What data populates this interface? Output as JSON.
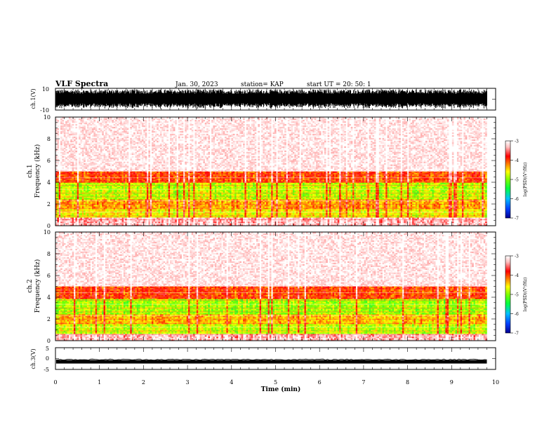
{
  "header": {
    "title": "VLF Spectra",
    "date": "Jan. 30, 2023",
    "station": "station= KAP",
    "start_ut": "start  UT  =   20: 50: 1"
  },
  "colors": {
    "axes": "#000000",
    "background": "#ffffff",
    "colorbar_stops": [
      "#000090",
      "#0040ff",
      "#00c0ff",
      "#00ff40",
      "#80ff00",
      "#ffff00",
      "#ff8000",
      "#ff0000",
      "#ffc0c0",
      "#ffffff"
    ]
  },
  "chart_data": [
    {
      "type": "line",
      "panel": "ch.1 waveform",
      "ylabel": "ch.1(V)",
      "ylim": [
        -10,
        10
      ],
      "yticks": [
        10,
        -10
      ],
      "xlim": [
        0,
        10
      ],
      "note_amplitude_fraction": 0.9
    },
    {
      "type": "heatmap",
      "panel": "ch.1 spectrogram",
      "ylabel": "ch.1\nFrequency (kHz)",
      "ylim": [
        0,
        10
      ],
      "yticks": [
        0,
        2,
        4,
        6,
        8,
        10
      ],
      "xlim": [
        0,
        9.8
      ],
      "colorbar": {
        "label": "log(PSD)(V²/Hz)",
        "range": [
          -7,
          -3
        ],
        "ticks": [
          -3,
          -4,
          -5,
          -6,
          -7
        ]
      },
      "band_levels": [
        {
          "fmin": 0,
          "fmax": 0.8,
          "level": -3.3
        },
        {
          "fmin": 0.8,
          "fmax": 1.5,
          "level": -4.6
        },
        {
          "fmin": 1.5,
          "fmax": 2.5,
          "level": -4.3
        },
        {
          "fmin": 2.5,
          "fmax": 4.0,
          "level": -4.8
        },
        {
          "fmin": 4.0,
          "fmax": 5.0,
          "level": -4.0
        },
        {
          "fmin": 5.0,
          "fmax": 10,
          "level": -3.2
        }
      ]
    },
    {
      "type": "heatmap",
      "panel": "ch.2 spectrogram",
      "ylabel": "ch.2\nFrequency (kHz)",
      "ylim": [
        0,
        10
      ],
      "yticks": [
        0,
        2,
        4,
        6,
        8,
        10
      ],
      "xlim": [
        0,
        9.8
      ],
      "colorbar": {
        "label": "log(PSD)(V²/Hz)",
        "range": [
          -7,
          -3
        ],
        "ticks": [
          -3,
          -4,
          -5,
          -6,
          -7
        ]
      },
      "band_levels": [
        {
          "fmin": 0,
          "fmax": 0.6,
          "level": -3.3
        },
        {
          "fmin": 0.6,
          "fmax": 1.5,
          "level": -4.8
        },
        {
          "fmin": 1.5,
          "fmax": 2.5,
          "level": -4.4
        },
        {
          "fmin": 2.5,
          "fmax": 3.8,
          "level": -4.9
        },
        {
          "fmin": 3.8,
          "fmax": 5.0,
          "level": -4.0
        },
        {
          "fmin": 5.0,
          "fmax": 10,
          "level": -3.2
        }
      ]
    },
    {
      "type": "line",
      "panel": "ch.3 waveform",
      "ylabel": "ch.3(V)",
      "ylim": [
        -5,
        5
      ],
      "yticks": [
        5,
        0,
        -5
      ],
      "xlim": [
        0,
        10
      ],
      "baseline_v": -1.5,
      "xlabel": "Time (min)",
      "xticks": [
        0,
        1,
        2,
        3,
        4,
        5,
        6,
        7,
        8,
        9,
        10
      ]
    }
  ]
}
